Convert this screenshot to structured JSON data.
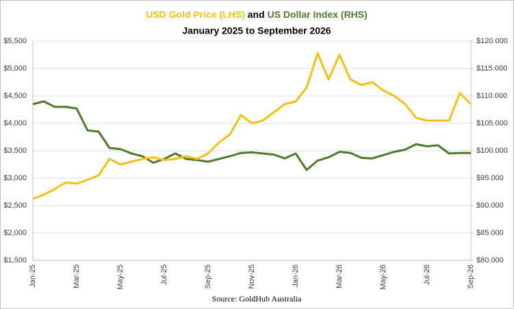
{
  "chart_data": {
    "type": "line",
    "title_connector": "and",
    "subtitle": "January 2025 to September 2026",
    "source": "Source: GoldHub Australia",
    "categories": [
      "Jan-25",
      null,
      null,
      null,
      "Mar-25",
      null,
      null,
      null,
      "May-25",
      null,
      null,
      null,
      "Jul-25",
      null,
      null,
      null,
      "Sep-25",
      null,
      null,
      null,
      "Nov-25",
      null,
      null,
      null,
      "Jan-26",
      null,
      null,
      null,
      "Mar-26",
      null,
      null,
      null,
      "May-26",
      null,
      null,
      null,
      "Jul-26",
      null,
      null,
      null,
      "Sep-26"
    ],
    "series": [
      {
        "name": "USD Gold Price (LHS)",
        "color": "#f5c013",
        "axis": "y",
        "values": [
          2620,
          2700,
          2800,
          2920,
          2900,
          2970,
          3050,
          3350,
          3250,
          3300,
          3350,
          3380,
          3330,
          3350,
          3400,
          3350,
          3450,
          3650,
          3800,
          4150,
          4000,
          4050,
          4200,
          4350,
          4400,
          4650,
          5280,
          4800,
          5250,
          4800,
          4700,
          4750,
          4600,
          4500,
          4350,
          4100,
          4050,
          4050,
          4050,
          4550,
          4350
        ]
      },
      {
        "name": "US Dollar Index (RHS)",
        "color": "#4f7a2e",
        "axis": "y2",
        "values": [
          108.5,
          109,
          108,
          108,
          107.7,
          103.7,
          103.5,
          100.5,
          100.3,
          99.5,
          99,
          97.8,
          98.5,
          99.5,
          98.5,
          98.3,
          98,
          98.5,
          99,
          99.6,
          99.7,
          99.5,
          99.3,
          98.6,
          99.5,
          96.5,
          98.2,
          98.8,
          99.8,
          99.6,
          98.7,
          98.6,
          99.2,
          99.8,
          100.2,
          101.2,
          100.8,
          101,
          99.5,
          99.6,
          99.6
        ]
      }
    ],
    "ylim": [
      1500,
      5500
    ],
    "yticks": [
      {
        "value": 1500,
        "label": "$1,500"
      },
      {
        "value": 2000,
        "label": "$2,000"
      },
      {
        "value": 2500,
        "label": "$2,500"
      },
      {
        "value": 3000,
        "label": "$3,000"
      },
      {
        "value": 3500,
        "label": "$3,500"
      },
      {
        "value": 4000,
        "label": "$4,000"
      },
      {
        "value": 4500,
        "label": "$4,500"
      },
      {
        "value": 5000,
        "label": "$5,000"
      },
      {
        "value": 5500,
        "label": "$5,500"
      }
    ],
    "y2lim": [
      80,
      120
    ],
    "y2ticks": [
      {
        "value": 80,
        "label": "$80.000"
      },
      {
        "value": 85,
        "label": "$85.000"
      },
      {
        "value": 90,
        "label": "$90.000"
      },
      {
        "value": 95,
        "label": "$95.000"
      },
      {
        "value": 100,
        "label": "$100.000"
      },
      {
        "value": 105,
        "label": "$105.000"
      },
      {
        "value": 110,
        "label": "$110.000"
      },
      {
        "value": 115,
        "label": "$115.000"
      },
      {
        "value": 120,
        "label": "$120.000"
      }
    ],
    "grid": true
  }
}
